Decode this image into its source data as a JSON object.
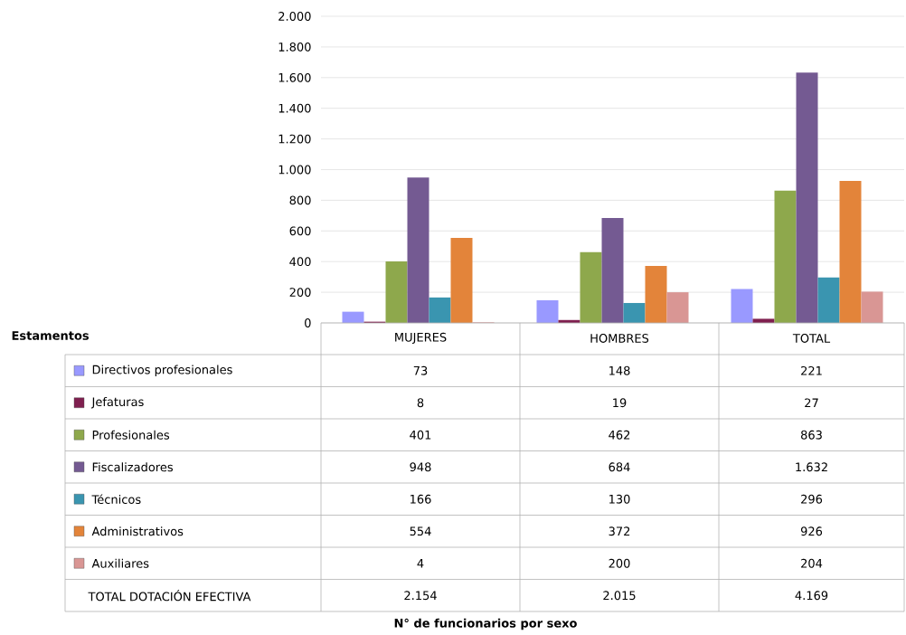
{
  "chart_data": {
    "type": "bar",
    "legend_title": "Estamentos",
    "categories": [
      "MUJERES",
      "HOMBRES",
      "TOTAL"
    ],
    "series": [
      {
        "name": "Directivos profesionales",
        "color": "#9999ff",
        "values": [
          73,
          148,
          221
        ],
        "value_labels": [
          "73",
          "148",
          "221"
        ]
      },
      {
        "name": "Jefaturas",
        "color": "#7f1f4f",
        "values": [
          8,
          19,
          27
        ],
        "value_labels": [
          "8",
          "19",
          "27"
        ]
      },
      {
        "name": "Profesionales",
        "color": "#8ea84c",
        "values": [
          401,
          462,
          863
        ],
        "value_labels": [
          "401",
          "462",
          "863"
        ]
      },
      {
        "name": "Fiscalizadores",
        "color": "#745a92",
        "values": [
          948,
          684,
          1632
        ],
        "value_labels": [
          "948",
          "684",
          "1.632"
        ]
      },
      {
        "name": "Técnicos",
        "color": "#3a95b0",
        "values": [
          166,
          130,
          296
        ],
        "value_labels": [
          "166",
          "130",
          "296"
        ]
      },
      {
        "name": "Administrativos",
        "color": "#e3843a",
        "values": [
          554,
          372,
          926
        ],
        "value_labels": [
          "554",
          "372",
          "926"
        ]
      },
      {
        "name": "Auxiliares",
        "color": "#d99694",
        "values": [
          4,
          200,
          204
        ],
        "value_labels": [
          "4",
          "200",
          "204"
        ]
      }
    ],
    "annotations": [
      "TOTAL DOTACIÓN EFECTIVA",
      "2.154",
      "2.015",
      "4.169",
      "N° de funcionarios por sexo"
    ],
    "ylim": [
      0,
      2000
    ],
    "yticks": [
      0,
      200,
      400,
      600,
      800,
      {
        "value": 1000,
        "label": "1.000"
      },
      {
        "value": 1200,
        "label": "1.200"
      },
      {
        "value": 1400,
        "label": "1.400"
      },
      {
        "value": 1600,
        "label": "1.600"
      },
      {
        "value": 1800,
        "label": "1.800"
      },
      {
        "value": 2000,
        "label": "2.000"
      }
    ],
    "grid": "y",
    "legend": "bottom"
  }
}
